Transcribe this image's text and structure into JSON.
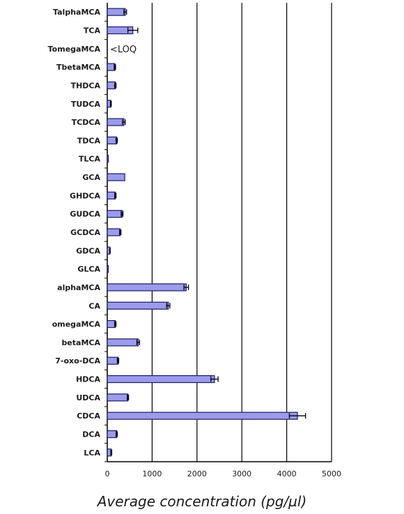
{
  "chart_data": {
    "type": "bar",
    "orientation": "horizontal",
    "categories": [
      "TalphaMCA",
      "TCA",
      "TomegaMCA",
      "TbetaMCA",
      "THDCA",
      "TUDCA",
      "TCDCA",
      "TDCA",
      "TLCA",
      "GCA",
      "GHDCA",
      "GUDCA",
      "GCDCA",
      "GDCA",
      "GLCA",
      "alphaMCA",
      "CA",
      "omegaMCA",
      "betaMCA",
      "7-oxo-DCA",
      "HDCA",
      "UDCA",
      "CDCA",
      "DCA",
      "LCA"
    ],
    "values": [
      400,
      570,
      0,
      170,
      180,
      80,
      370,
      210,
      10,
      390,
      180,
      330,
      290,
      60,
      15,
      1760,
      1360,
      180,
      690,
      240,
      2390,
      460,
      4240,
      210,
      90
    ],
    "errors": [
      30,
      110,
      0,
      15,
      15,
      10,
      30,
      15,
      0,
      0,
      15,
      20,
      15,
      5,
      0,
      50,
      35,
      15,
      30,
      15,
      80,
      15,
      180,
      15,
      10
    ],
    "xlabel": "Average concentration (pg/µl)",
    "xlim": [
      0,
      5000
    ],
    "xticks": [
      0,
      1000,
      2000,
      3000,
      4000,
      5000
    ],
    "annotations": [
      {
        "category": "TomegaMCA",
        "text": "<LOQ"
      }
    ],
    "grid": "vertical",
    "colors": {
      "bar": "#9b9bea",
      "bar_edge": "#1a1a6a",
      "grid": "#000000"
    }
  }
}
